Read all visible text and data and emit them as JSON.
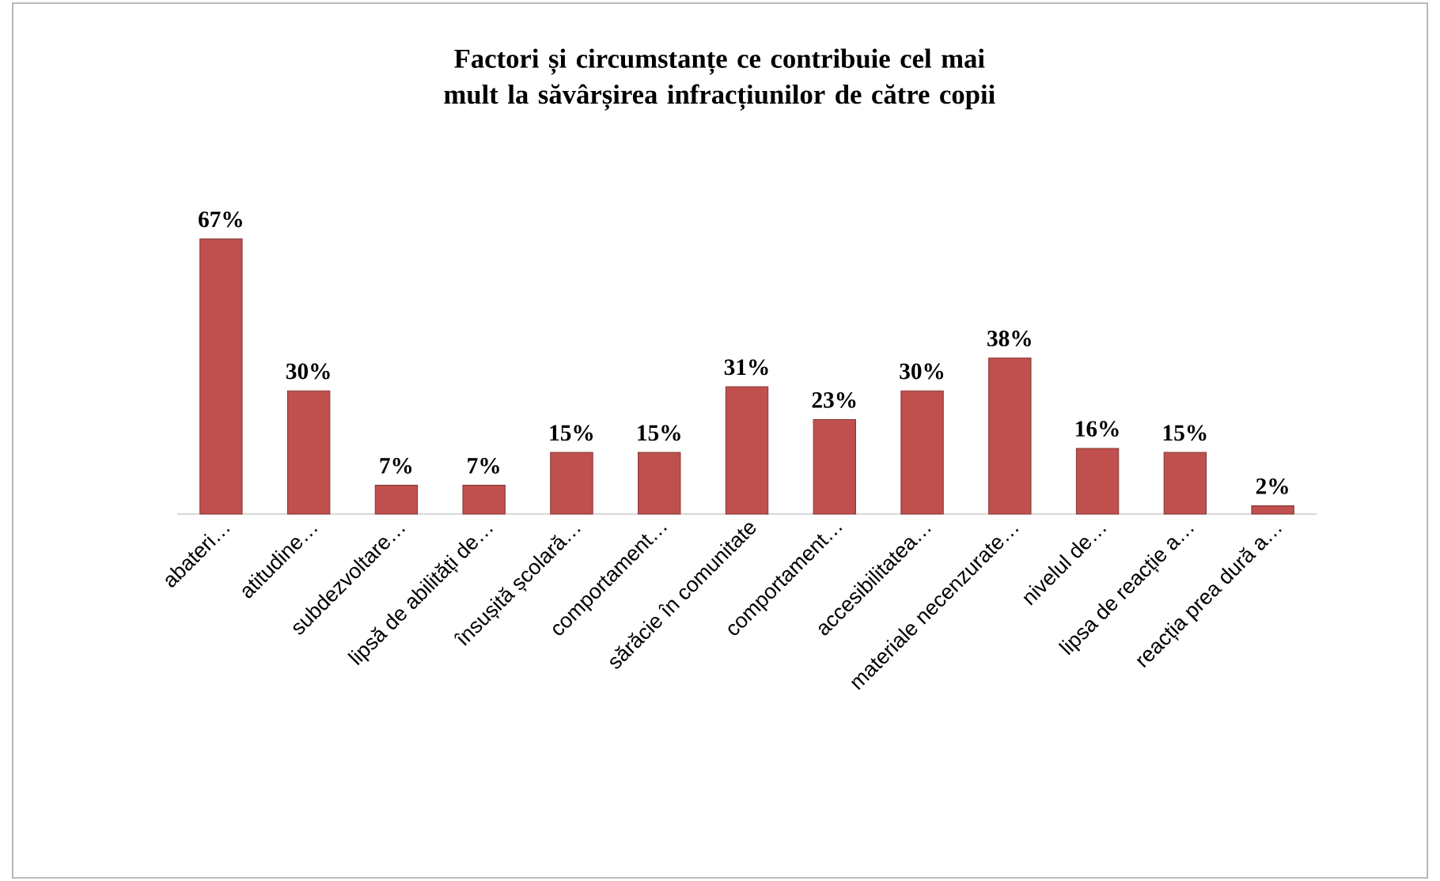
{
  "chart_data": {
    "type": "bar",
    "title": "Factori și circumstanțe ce contribuie cel mai mult la săvârșirea infracțiunilor de către copii",
    "categories": [
      "abateri…",
      "atitudine…",
      "subdezvoltare…",
      "lipsă de abilități de…",
      "însușită școlară…",
      "comportament…",
      "sărăcie în comunitate",
      "comportament…",
      "accesibilitatea…",
      "materiale necenzurate…",
      "nivelul de…",
      "lipsa de reacție a…",
      "reacția prea dură a…"
    ],
    "values": [
      67,
      30,
      7,
      7,
      15,
      15,
      31,
      23,
      30,
      38,
      16,
      15,
      2
    ],
    "value_labels": [
      "67%",
      "30%",
      "7%",
      "7%",
      "15%",
      "15%",
      "31%",
      "23%",
      "30%",
      "38%",
      "16%",
      "15%",
      "2%"
    ],
    "color": "#c0504d"
  }
}
